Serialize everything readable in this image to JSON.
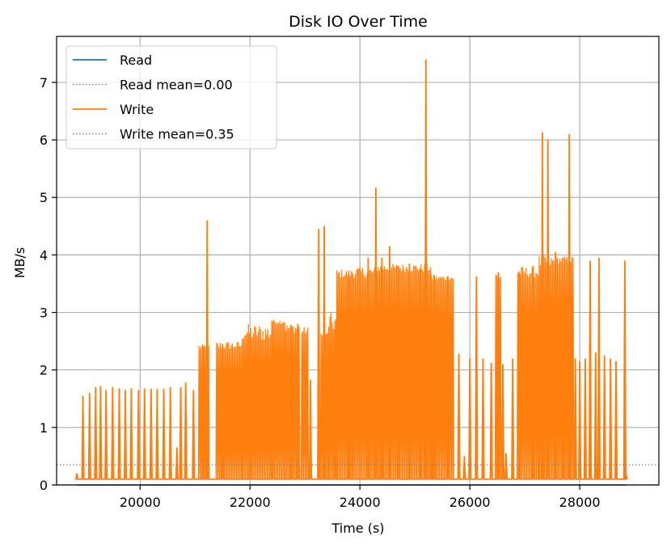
{
  "chart_data": {
    "type": "line",
    "title": "Disk IO Over Time",
    "xlabel": "Time (s)",
    "ylabel": "MB/s",
    "xlim": [
      18480,
      29440
    ],
    "ylim": [
      0,
      7.8
    ],
    "xticks": [
      20000,
      22000,
      24000,
      26000,
      28000
    ],
    "xtick_labels": [
      "20000",
      "22000",
      "24000",
      "26000",
      "28000"
    ],
    "yticks": [
      0,
      1,
      2,
      3,
      4,
      5,
      6,
      7
    ],
    "ytick_labels": [
      "0",
      "1",
      "2",
      "3",
      "4",
      "5",
      "6",
      "7"
    ],
    "grid": true,
    "legend_position": "upper-left",
    "legend": [
      "Read",
      "Read mean=0.00",
      "Write",
      "Write mean=0.35"
    ],
    "colors": {
      "read": "#1f77b4",
      "write": "#ff7f0e",
      "mean": "#7f7f7f"
    },
    "series": [
      {
        "name": "Read",
        "kind": "line",
        "x": [
          18850,
          28850
        ],
        "values": [
          0.0,
          0.0
        ]
      },
      {
        "name": "Read mean=0.00",
        "kind": "hline",
        "value": 0.0
      },
      {
        "name": "Write",
        "kind": "line",
        "base": 0.1,
        "spikes": [
          [
            18850,
            0.2
          ],
          [
            18960,
            1.55
          ],
          [
            19080,
            1.6
          ],
          [
            19190,
            1.7
          ],
          [
            19280,
            1.72
          ],
          [
            19380,
            1.65
          ],
          [
            19500,
            1.7
          ],
          [
            19620,
            1.68
          ],
          [
            19730,
            1.65
          ],
          [
            19840,
            1.68
          ],
          [
            19970,
            1.65
          ],
          [
            20080,
            1.68
          ],
          [
            20200,
            1.67
          ],
          [
            20310,
            1.67
          ],
          [
            20430,
            1.67
          ],
          [
            20550,
            1.7
          ],
          [
            20670,
            0.65
          ],
          [
            20740,
            1.7
          ],
          [
            20830,
            1.78
          ],
          [
            20970,
            1.65
          ],
          [
            21150,
            2.4
          ],
          [
            21220,
            4.6
          ],
          [
            21500,
            2.45
          ],
          [
            22000,
            2.55
          ],
          [
            22400,
            2.85
          ],
          [
            22750,
            2.78
          ],
          [
            22870,
            2.8
          ],
          [
            23100,
            1.83
          ],
          [
            23250,
            4.45
          ],
          [
            23350,
            4.5
          ],
          [
            23550,
            2.7
          ],
          [
            23800,
            3.68
          ],
          [
            24150,
            3.95
          ],
          [
            24290,
            5.17
          ],
          [
            24400,
            3.95
          ],
          [
            24540,
            4.15
          ],
          [
            24700,
            3.8
          ],
          [
            24900,
            3.85
          ],
          [
            25100,
            3.75
          ],
          [
            25200,
            7.4
          ],
          [
            25350,
            3.65
          ],
          [
            25600,
            3.62
          ],
          [
            25800,
            2.28
          ],
          [
            25900,
            0.5
          ],
          [
            26000,
            2.2
          ],
          [
            26120,
            3.62
          ],
          [
            26240,
            2.2
          ],
          [
            26390,
            2.12
          ],
          [
            26520,
            3.7
          ],
          [
            26600,
            2.1
          ],
          [
            26660,
            0.55
          ],
          [
            26780,
            2.2
          ],
          [
            26900,
            3.7
          ],
          [
            27150,
            3.8
          ],
          [
            27320,
            6.13
          ],
          [
            27420,
            6.0
          ],
          [
            27560,
            4.05
          ],
          [
            27700,
            2.2
          ],
          [
            27810,
            6.1
          ],
          [
            27920,
            2.2
          ],
          [
            28000,
            2.15
          ],
          [
            28100,
            2.2
          ],
          [
            28190,
            3.9
          ],
          [
            28290,
            2.3
          ],
          [
            28350,
            3.95
          ],
          [
            28450,
            2.25
          ],
          [
            28560,
            2.2
          ],
          [
            28660,
            2.15
          ],
          [
            28820,
            3.9
          ],
          [
            28850,
            0.15
          ]
        ],
        "dense_blocks": [
          [
            21060,
            21250,
            0.1,
            2.35,
            2.45
          ],
          [
            21380,
            21850,
            0.1,
            2.35,
            2.5
          ],
          [
            21850,
            22400,
            0.1,
            2.5,
            2.8
          ],
          [
            22400,
            22630,
            0.1,
            2.8,
            2.88
          ],
          [
            22640,
            22900,
            0.1,
            2.65,
            2.8
          ],
          [
            22930,
            23050,
            0.1,
            2.6,
            2.75
          ],
          [
            23280,
            23420,
            0.1,
            2.6,
            2.65
          ],
          [
            23420,
            23570,
            0.1,
            2.65,
            3.0
          ],
          [
            23570,
            23860,
            0.1,
            3.6,
            3.75
          ],
          [
            23860,
            24300,
            0.1,
            3.6,
            3.8
          ],
          [
            24300,
            24680,
            0.1,
            3.7,
            3.85
          ],
          [
            24680,
            25290,
            0.1,
            3.7,
            3.85
          ],
          [
            25290,
            25700,
            0.1,
            3.55,
            3.65
          ],
          [
            26460,
            26560,
            0.1,
            3.55,
            3.7
          ],
          [
            26860,
            27250,
            0.1,
            3.6,
            3.8
          ],
          [
            27250,
            27560,
            0.1,
            3.75,
            4.0
          ],
          [
            27560,
            27880,
            0.1,
            3.85,
            3.98
          ]
        ]
      },
      {
        "name": "Write mean=0.35",
        "kind": "hline",
        "value": 0.35
      }
    ]
  }
}
